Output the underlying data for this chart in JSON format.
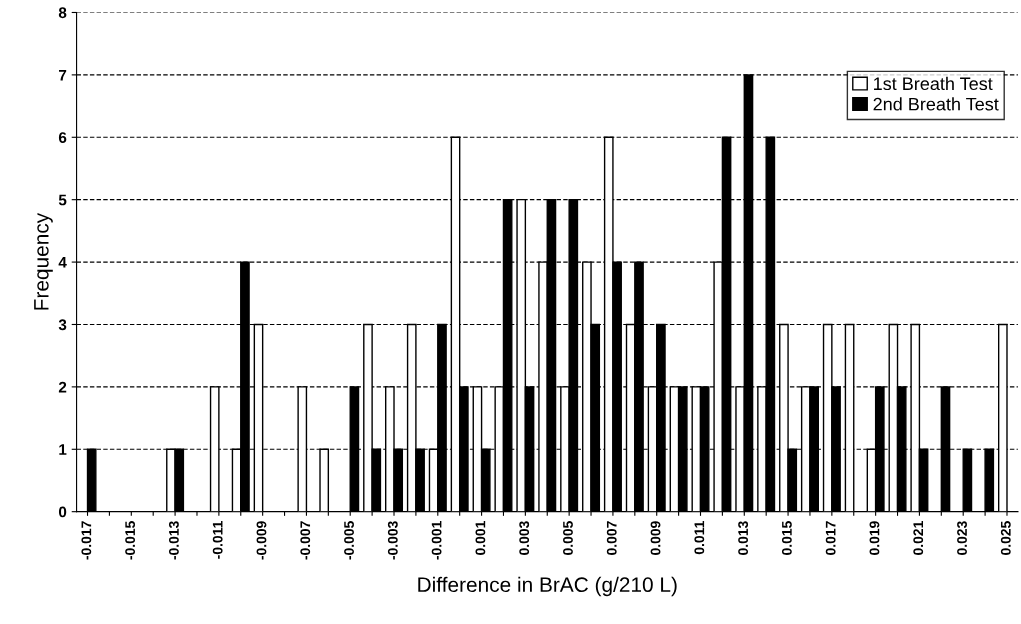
{
  "chart_data": {
    "type": "bar",
    "xlabel": "Difference in BrAC (g/210 L)",
    "ylabel": "Frequency",
    "categories": [
      "-0.017",
      null,
      "-0.015",
      null,
      "-0.013",
      null,
      "-0.011",
      null,
      "-0.009",
      null,
      "-0.007",
      null,
      "-0.005",
      null,
      "-0.003",
      null,
      "-0.001",
      null,
      "0.001",
      null,
      "0.003",
      null,
      "0.005",
      null,
      "0.007",
      null,
      "0.009",
      null,
      "0.011",
      null,
      "0.013",
      null,
      "0.015",
      null,
      "0.017",
      null,
      "0.019",
      null,
      "0.021",
      null,
      "0.023",
      null,
      "0.025"
    ],
    "series": [
      {
        "name": "1st Breath Test",
        "color": "#ffffff",
        "values": [
          0,
          0,
          0,
          0,
          1,
          0,
          2,
          1,
          3,
          0,
          2,
          1,
          0,
          3,
          2,
          3,
          1,
          6,
          2,
          2,
          5,
          4,
          2,
          4,
          6,
          3,
          2,
          2,
          2,
          4,
          2,
          2,
          3,
          2,
          3,
          3,
          1,
          3,
          3,
          0,
          0,
          0,
          3
        ]
      },
      {
        "name": "2nd Breath Test",
        "color": "#000000",
        "values": [
          1,
          0,
          0,
          0,
          1,
          0,
          0,
          4,
          0,
          0,
          0,
          0,
          2,
          1,
          1,
          1,
          3,
          2,
          1,
          5,
          2,
          5,
          5,
          3,
          4,
          4,
          3,
          2,
          2,
          6,
          7,
          6,
          1,
          2,
          2,
          0,
          2,
          2,
          1,
          2,
          1,
          1,
          0
        ]
      }
    ],
    "ylim": [
      0,
      8
    ],
    "yticks": [
      0,
      1,
      2,
      3,
      4,
      5,
      6,
      7,
      8
    ],
    "grid": "y",
    "legend": "top right"
  }
}
